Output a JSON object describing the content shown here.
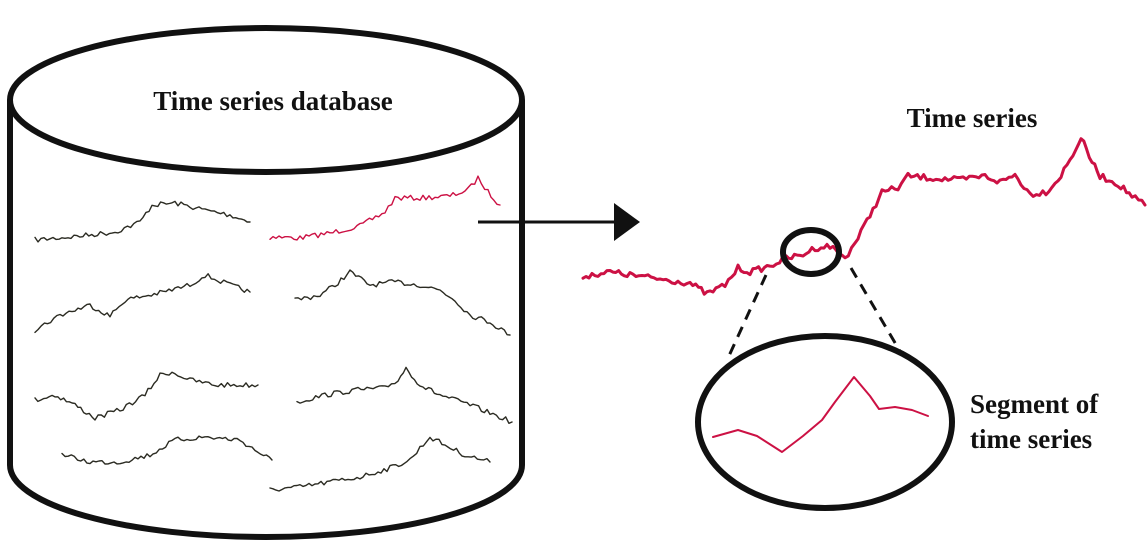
{
  "diagram": {
    "database_label": "Time series database",
    "time_series_label": "Time series",
    "segment_label_line1": "Segment of",
    "segment_label_line2": "time series"
  },
  "colors": {
    "outline": "#111111",
    "database_series": "#2b2b22",
    "highlighted_series": "#cc1144",
    "background": "#ffffff"
  }
}
